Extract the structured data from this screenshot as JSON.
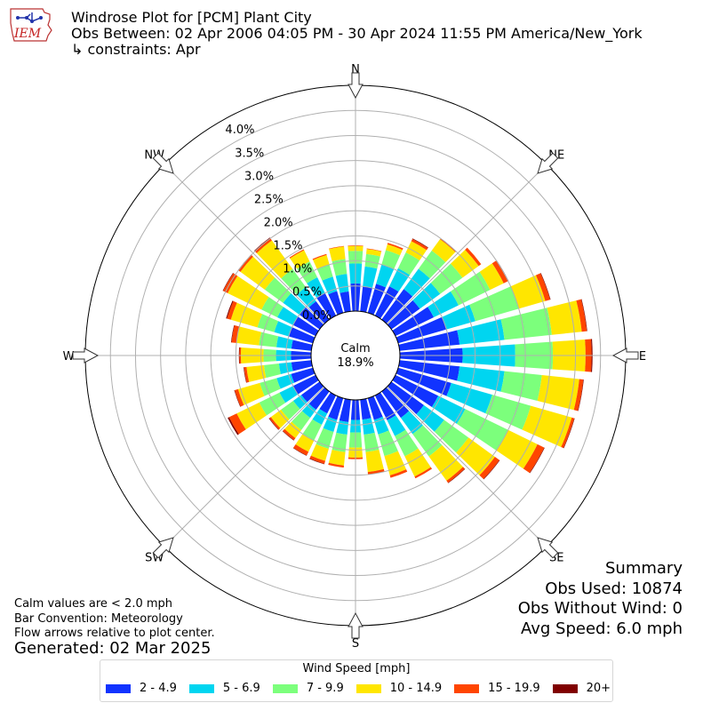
{
  "logo": {
    "text": "IEM"
  },
  "header": {
    "title": "Windrose Plot for [PCM] Plant City",
    "period": "Obs Between: 02 Apr 2006 04:05 PM - 30 Apr 2024 11:55 PM America/New_York",
    "constraints": "↳ constraints: Apr"
  },
  "notes": {
    "calm_def": "Calm values are < 2.0 mph",
    "convention": "Bar Convention: Meteorology",
    "flow": "Flow arrows relative to plot center.",
    "generated": "Generated: 02 Mar 2025"
  },
  "summary": {
    "title": "Summary",
    "obs_used": "Obs Used: 10874",
    "obs_without_wind": "Obs Without Wind: 0",
    "avg_speed": "Avg Speed: 6.0 mph"
  },
  "legend": {
    "title": "Wind Speed [mph]",
    "items": [
      {
        "label": "2 - 4.9",
        "color": "#1133ff"
      },
      {
        "label": "5 - 6.9",
        "color": "#00d5f0"
      },
      {
        "label": "7 - 9.9",
        "color": "#7cff7c"
      },
      {
        "label": "10 - 14.9",
        "color": "#ffe600"
      },
      {
        "label": "15 - 19.9",
        "color": "#ff4500"
      },
      {
        "label": "20+",
        "color": "#800000"
      }
    ]
  },
  "chart_data": {
    "type": "windrose",
    "calm_label": "Calm",
    "calm_value": "18.9%",
    "radial_ticks": [
      "0.0%",
      "0.5%",
      "1.0%",
      "1.5%",
      "2.0%",
      "2.5%",
      "3.0%",
      "3.5%",
      "4.0%"
    ],
    "rmax": 4.5,
    "compass_labels": [
      "N",
      "NE",
      "E",
      "SE",
      "S",
      "SW",
      "W",
      "NW"
    ],
    "directions_deg": [
      0,
      10,
      20,
      30,
      40,
      50,
      60,
      70,
      80,
      90,
      100,
      110,
      120,
      130,
      140,
      150,
      160,
      170,
      180,
      190,
      200,
      210,
      220,
      230,
      240,
      250,
      260,
      270,
      280,
      290,
      300,
      310,
      320,
      330,
      340,
      350
    ],
    "speed_bins": [
      "2 - 4.9",
      "5 - 6.9",
      "7 - 9.9",
      "10 - 14.9",
      "15 - 19.9",
      "20+"
    ],
    "cumulative_pct": [
      [
        0.55,
        0.95,
        1.2,
        1.3,
        1.31,
        1.31
      ],
      [
        0.5,
        0.9,
        1.15,
        1.25,
        1.26,
        1.26
      ],
      [
        0.6,
        1.0,
        1.3,
        1.42,
        1.45,
        1.45
      ],
      [
        0.65,
        1.05,
        1.4,
        1.65,
        1.7,
        1.71
      ],
      [
        0.75,
        1.25,
        1.7,
        1.98,
        2.0,
        2.0
      ],
      [
        0.7,
        1.2,
        1.75,
        2.15,
        2.21,
        2.21
      ],
      [
        0.85,
        1.4,
        2.1,
        2.4,
        2.5,
        2.51
      ],
      [
        1.0,
        1.6,
        2.5,
        3.05,
        3.15,
        3.16
      ],
      [
        1.2,
        2.1,
        3.05,
        3.65,
        3.75,
        3.76
      ],
      [
        1.25,
        2.3,
        3.05,
        3.7,
        3.82,
        3.84
      ],
      [
        1.2,
        2.1,
        2.85,
        3.6,
        3.68,
        3.69
      ],
      [
        1.1,
        1.95,
        2.75,
        3.6,
        3.65,
        3.66
      ],
      [
        0.95,
        1.55,
        2.5,
        3.15,
        3.3,
        3.31
      ],
      [
        0.8,
        1.3,
        1.9,
        2.55,
        2.66,
        2.67
      ],
      [
        0.65,
        1.05,
        1.6,
        2.2,
        2.25,
        2.26
      ],
      [
        0.55,
        0.9,
        1.35,
        1.8,
        1.84,
        1.84
      ],
      [
        0.45,
        0.75,
        1.2,
        1.6,
        1.65,
        1.65
      ],
      [
        0.4,
        0.7,
        1.05,
        1.45,
        1.5,
        1.5
      ],
      [
        0.4,
        0.65,
        0.95,
        1.15,
        1.18,
        1.18
      ],
      [
        0.45,
        0.7,
        1.05,
        1.32,
        1.36,
        1.36
      ],
      [
        0.45,
        0.7,
        1.05,
        1.3,
        1.36,
        1.37
      ],
      [
        0.4,
        0.65,
        1.0,
        1.25,
        1.33,
        1.34
      ],
      [
        0.45,
        0.65,
        0.95,
        1.15,
        1.2,
        1.21
      ],
      [
        0.45,
        0.65,
        0.95,
        1.2,
        1.24,
        1.25
      ],
      [
        0.5,
        0.8,
        1.25,
        1.75,
        1.92,
        1.95
      ],
      [
        0.45,
        0.75,
        1.1,
        1.55,
        1.62,
        1.63
      ],
      [
        0.4,
        0.65,
        0.95,
        1.3,
        1.35,
        1.36
      ],
      [
        0.4,
        0.7,
        0.95,
        1.4,
        1.43,
        1.44
      ],
      [
        0.4,
        0.7,
        1.05,
        1.5,
        1.6,
        1.61
      ],
      [
        0.5,
        0.8,
        1.15,
        1.7,
        1.78,
        1.8
      ],
      [
        0.5,
        0.85,
        1.2,
        1.95,
        2.05,
        2.06
      ],
      [
        0.5,
        0.9,
        1.35,
        1.95,
        2.0,
        2.01
      ],
      [
        0.45,
        0.8,
        1.25,
        1.95,
        2.0,
        2.02
      ],
      [
        0.5,
        0.85,
        1.2,
        1.45,
        1.47,
        1.47
      ],
      [
        0.45,
        0.75,
        1.0,
        1.2,
        1.22,
        1.22
      ],
      [
        0.4,
        0.75,
        1.05,
        1.3,
        1.31,
        1.31
      ]
    ]
  }
}
